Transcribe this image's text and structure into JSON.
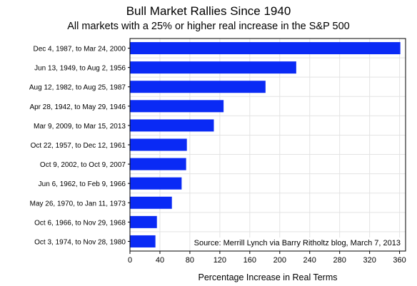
{
  "chart_data": {
    "type": "bar",
    "orientation": "horizontal",
    "title": "Bull Market Rallies Since 1940",
    "subtitle": "All markets with a 25% or higher real increase in the S&P 500",
    "xlabel": "Percentage Increase in Real Terms",
    "ylabel": "",
    "annotation": "Source:  Merrill Lynch via Barry Ritholtz blog, March 7, 2013",
    "categories": [
      "Dec 4, 1987, to Mar 24, 2000",
      "Jun 13, 1949, to Aug 2, 1956",
      "Aug 12, 1982, to Aug 25, 1987",
      "Apr 28, 1942, to May 29, 1946",
      "Mar 9, 2009, to Mar 15, 2013",
      "Oct 22, 1957, to Dec 12, 1961",
      "Oct 9, 2002, to Oct 9, 2007",
      "Jun 6, 1962, to Feb 9, 1966",
      "May 26, 1970, to Jan 11, 1973",
      "Oct 6, 1966, to Nov 29, 1968",
      "Oct 3, 1974, to Nov 28, 1980"
    ],
    "values": [
      361,
      222,
      181,
      125,
      112,
      76,
      75,
      69,
      56,
      36,
      34
    ],
    "xlim": [
      0,
      368
    ],
    "xticks": [
      0,
      40,
      80,
      120,
      160,
      200,
      240,
      280,
      320,
      360
    ],
    "grid": true,
    "bar_color": "#0a2af5",
    "grid_color": "#e3e3e3"
  }
}
